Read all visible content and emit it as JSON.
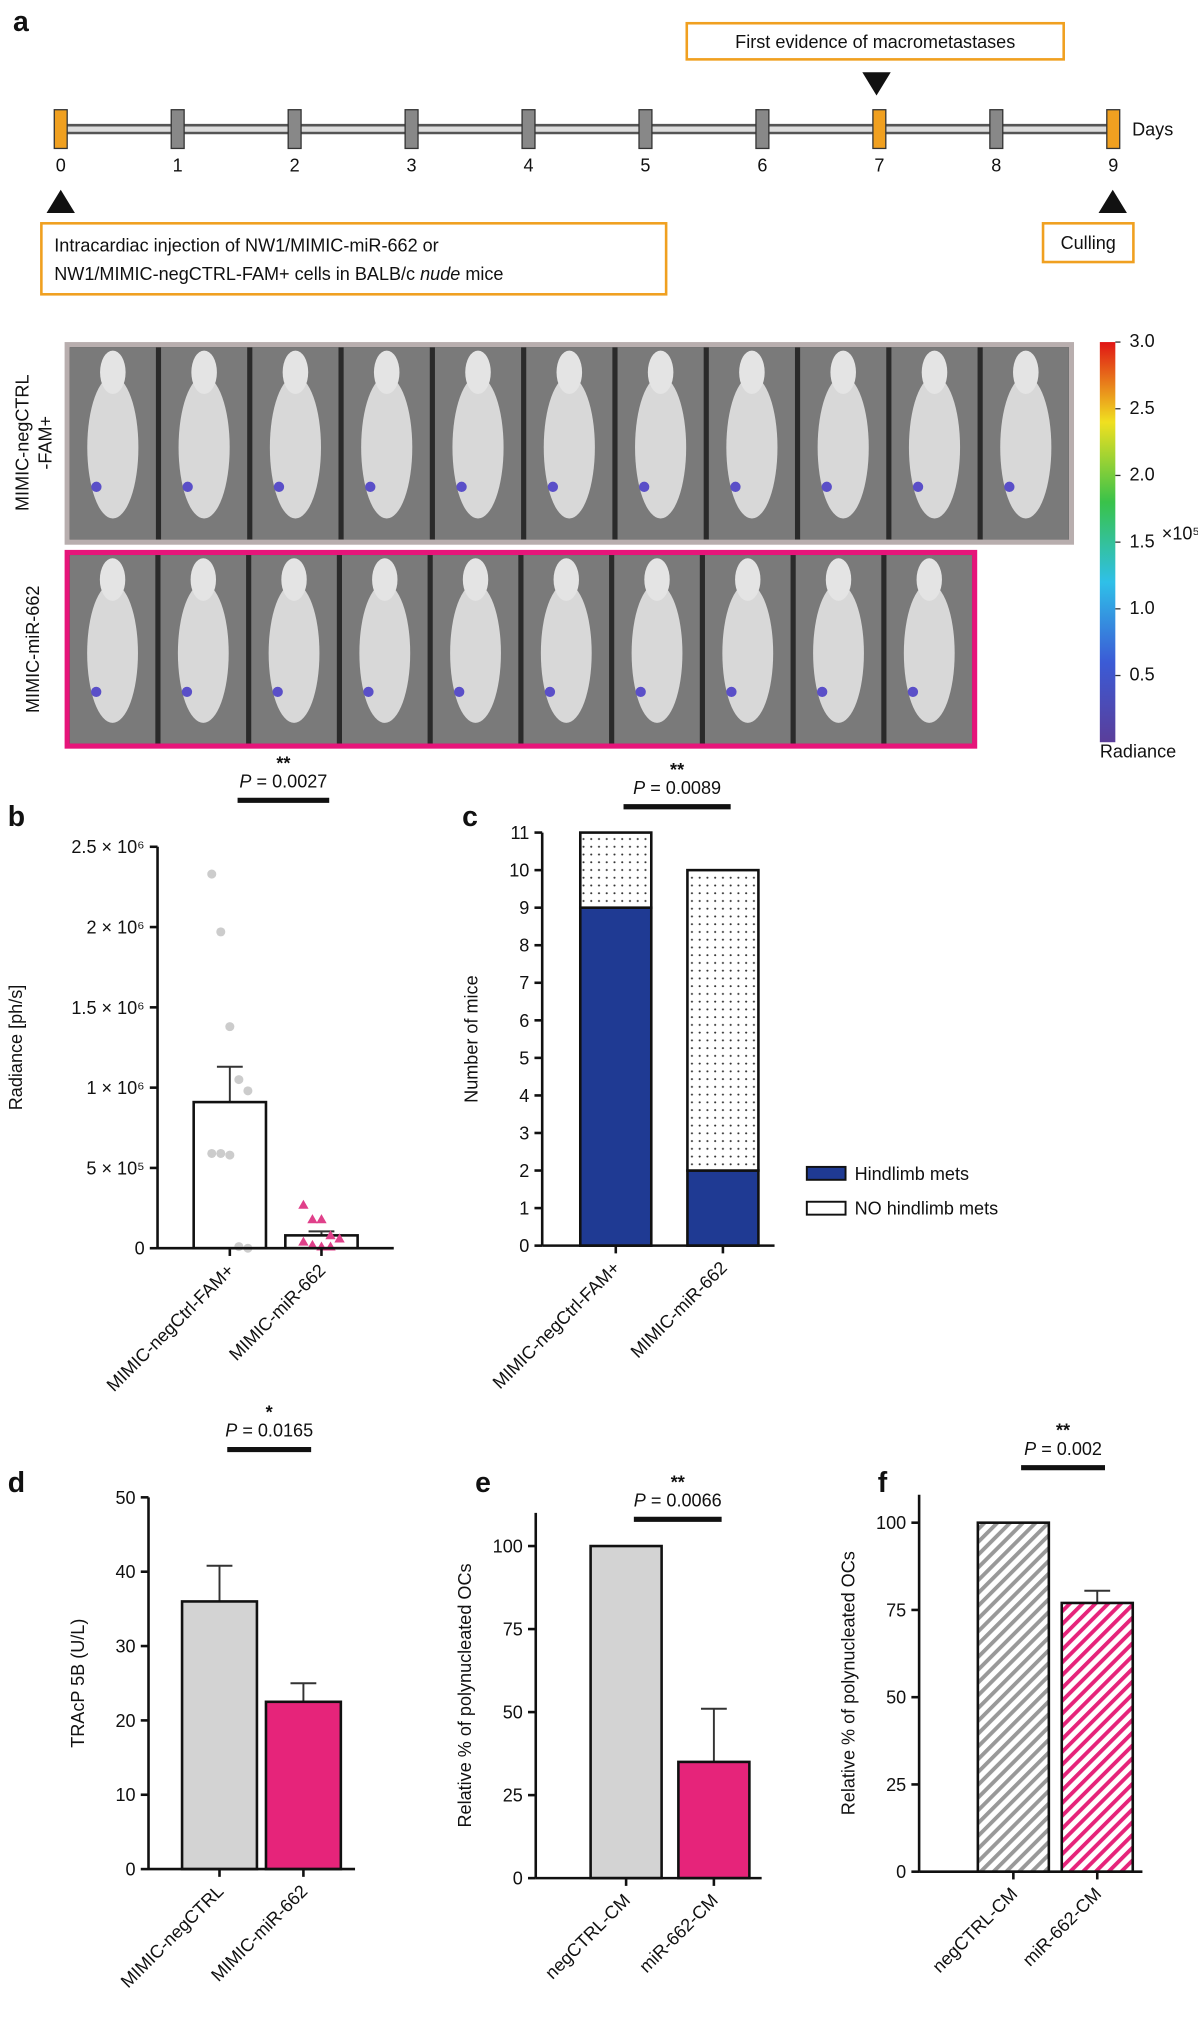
{
  "panel_a": {
    "letter": "a",
    "days": [
      0,
      1,
      2,
      3,
      4,
      5,
      6,
      7,
      8,
      9
    ],
    "marker_colors": [
      "#f0a020",
      "#888888",
      "#888888",
      "#888888",
      "#888888",
      "#888888",
      "#888888",
      "#f0a020",
      "#888888",
      "#f0a020"
    ],
    "axis_label": "Days",
    "annotation_top": "First evidence of macrometastases",
    "injection_lines": [
      "Intracardiac injection of NW1/MIMIC-miR-662 or",
      [
        "NW1/MIMIC-negCTRL-FAM+ cells in BALB/c ",
        "nude",
        " mice"
      ]
    ],
    "culling": "Culling",
    "row_labels": [
      [
        "MIMIC-negCTRL",
        "-FAM+"
      ],
      "MIMIC-miR-662"
    ],
    "colorbar": {
      "clim": [
        0,
        3
      ],
      "ticks": [
        {
          "value": 0.5,
          "label": "0.5"
        },
        {
          "value": 1,
          "label": "1.0"
        },
        {
          "value": 1.5,
          "label": "1.5"
        },
        {
          "value": 2,
          "label": "2.0"
        },
        {
          "value": 2.5,
          "label": "2.5"
        },
        {
          "value": 3,
          "label": "3.0"
        }
      ],
      "exponent": "×10⁵",
      "label": "Radiance"
    }
  },
  "chart_data": [
    {
      "type": "bar",
      "letter": "b",
      "categories": [
        "MIMIC-negCtrl-FAM+",
        "MIMIC-miR-662"
      ],
      "values": [
        910000,
        80000
      ],
      "errors": [
        220000,
        25000
      ],
      "colors": [
        "#ffffff",
        "#ffffff"
      ],
      "points": [
        [
          2330000,
          1970000,
          1380000,
          1050000,
          980000,
          590000,
          590000,
          580000,
          10000,
          0
        ],
        [
          270000,
          180000,
          180000,
          80000,
          60000,
          40000,
          20000,
          10000,
          10000
        ]
      ],
      "point_colors": [
        "#cccccc",
        "#e0408a"
      ],
      "ylabel": "Radiance [ph/s]",
      "ylim": [
        0,
        2500000
      ],
      "yticks": [
        0,
        {
          "value": 500000,
          "label": "5 × 10⁵"
        },
        {
          "value": 1000000,
          "label": "1 × 10⁶"
        },
        {
          "value": 1500000,
          "label": "1.5 × 10⁶"
        },
        {
          "value": 2000000,
          "label": "2 × 10⁶"
        },
        {
          "value": 2500000,
          "label": "2.5 × 10⁶"
        }
      ],
      "significance": "**",
      "p_text": "P = 0.0027"
    },
    {
      "type": "stacked",
      "letter": "c",
      "categories": [
        "MIMIC-negCtrl-FAM+",
        "MIMIC-miR-662"
      ],
      "series": [
        {
          "name": "Hindlimb mets",
          "color": "#1f3a93",
          "values": [
            9,
            2
          ]
        },
        {
          "name": "NO hindlimb mets",
          "color": "#ffffff",
          "pattern": "dots",
          "values": [
            2,
            8
          ]
        }
      ],
      "ylabel": "Number of mice",
      "ylim": [
        0,
        11
      ],
      "yticks": [
        0,
        1,
        2,
        3,
        4,
        5,
        6,
        7,
        8,
        9,
        10,
        11
      ],
      "significance": "**",
      "p_text": "P = 0.0089"
    },
    {
      "type": "bar",
      "letter": "d",
      "categories": [
        "MIMIC-negCTRL",
        "MIMIC-miR-662"
      ],
      "values": [
        36,
        22.5
      ],
      "errors": [
        4.8,
        2.5
      ],
      "colors": [
        "#d3d3d3",
        "#e6247a"
      ],
      "ylabel": "TRAcP 5B (U/L)",
      "ylim": [
        0,
        50
      ],
      "yticks": [
        0,
        10,
        20,
        30,
        40,
        50
      ],
      "significance": "*",
      "p_text": "P = 0.0165"
    },
    {
      "type": "bar",
      "letter": "e",
      "categories": [
        "negCTRL-CM",
        "miR-662-CM"
      ],
      "values": [
        100,
        35
      ],
      "errors": [
        0,
        16
      ],
      "colors": [
        "#d3d3d3",
        "#e6247a"
      ],
      "ylabel": "Relative % of polynucleated OCs",
      "ylim": [
        0,
        110
      ],
      "yticks": [
        0,
        25,
        50,
        75,
        100
      ],
      "significance": "**",
      "p_text": "P = 0.0066"
    },
    {
      "type": "bar",
      "letter": "f",
      "categories": [
        "negCTRL-CM",
        "miR-662-CM"
      ],
      "values": [
        100,
        77
      ],
      "errors": [
        0,
        3.5
      ],
      "colors": [
        "#999999",
        "#e6247a"
      ],
      "hatch": true,
      "ylabel": "Relative % of polynucleated OCs",
      "ylim": [
        0,
        108
      ],
      "yticks": [
        0,
        25,
        50,
        75,
        100
      ],
      "significance": "**",
      "p_text": "P = 0.002"
    }
  ]
}
